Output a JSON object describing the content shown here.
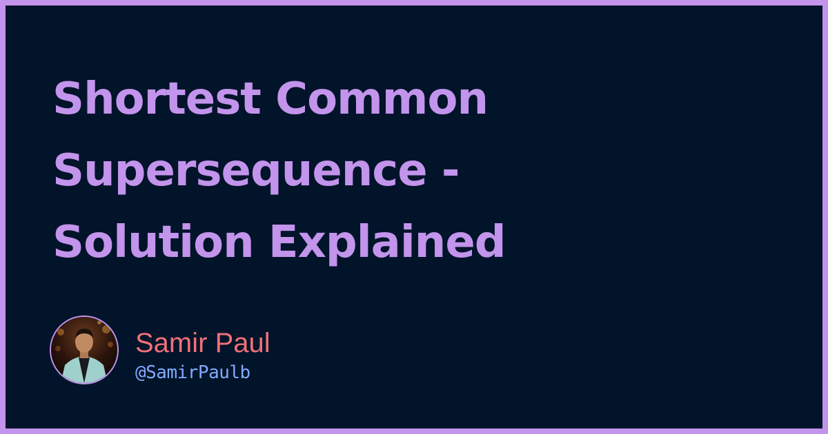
{
  "title": {
    "lines": [
      "Shortest Common",
      "Supersequence -",
      "Solution Explained"
    ]
  },
  "author": {
    "name": "Samir Paul",
    "handle": "@SamirPaulb",
    "avatar_icon": "person-photo-avatar"
  },
  "colors": {
    "frame": "#c394ec",
    "background": "#02142a",
    "title": "#c394ec",
    "name": "#f07178",
    "handle": "#82aaff"
  }
}
